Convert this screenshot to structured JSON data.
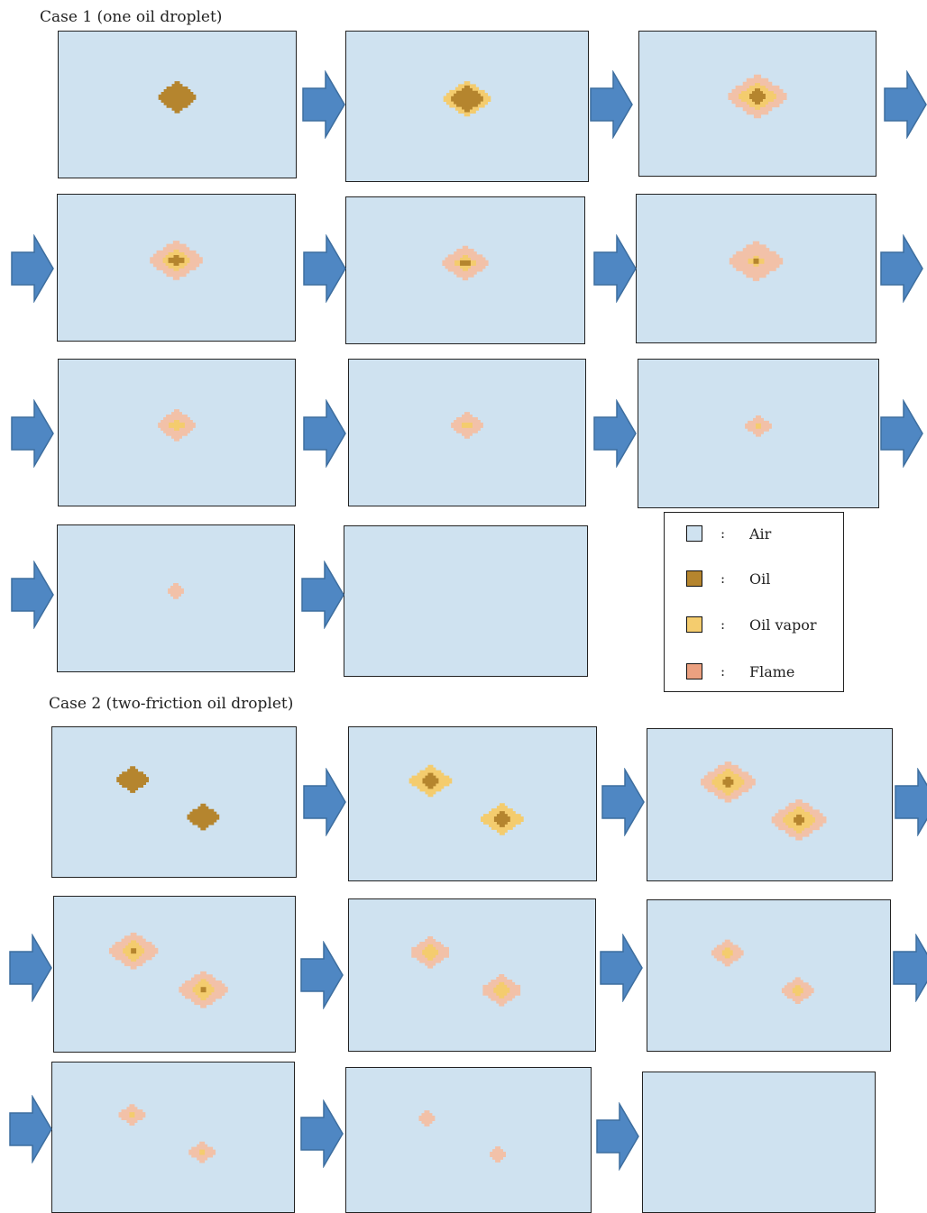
{
  "titles": {
    "case1": "Case 1 (one oil droplet)",
    "case2": "Case 2 (two-friction oil droplet)"
  },
  "colors": {
    "air": "#cfe2f0",
    "oil": "#b5852e",
    "oil_vapor": "#f4cc6e",
    "flame": "#f2c1a8",
    "arrow_fill": "#4f87c3",
    "arrow_stroke": "#3d6e9f"
  },
  "legend": [
    {
      "key": "air",
      "label": "Air",
      "color": "#cfe2f0"
    },
    {
      "key": "oil",
      "label": "Oil",
      "color": "#b5852e"
    },
    {
      "key": "oil_vapor",
      "label": "Oil vapor",
      "color": "#f4cc6e"
    },
    {
      "key": "flame",
      "label": "Flame",
      "color": "#eba080"
    }
  ],
  "legend_separator": ":",
  "case1_frames": [
    {
      "droplets": [
        {
          "flame": 0,
          "vapor": 0,
          "oil": 0.3
        }
      ]
    },
    {
      "droplets": [
        {
          "flame": 0,
          "vapor": 0.35,
          "oil": 0.25
        }
      ]
    },
    {
      "droplets": [
        {
          "flame": 0.45,
          "vapor": 0.28,
          "oil": 0.15
        }
      ]
    },
    {
      "droplets": [
        {
          "flame": 0.4,
          "vapor": 0.22,
          "oil": 0.12
        }
      ]
    },
    {
      "droplets": [
        {
          "flame": 0.35,
          "vapor": 0.16,
          "oil": 0.08
        }
      ]
    },
    {
      "droplets": [
        {
          "flame": 0.4,
          "vapor": 0.12,
          "oil": 0.04
        }
      ]
    },
    {
      "droplets": [
        {
          "flame": 0.3,
          "vapor": 0.12,
          "oil": 0
        }
      ]
    },
    {
      "droplets": [
        {
          "flame": 0.25,
          "vapor": 0.08,
          "oil": 0
        }
      ]
    },
    {
      "droplets": [
        {
          "flame": 0.2,
          "vapor": 0.04,
          "oil": 0
        }
      ]
    },
    {
      "droplets": [
        {
          "flame": 0.15,
          "vapor": 0,
          "oil": 0
        }
      ]
    },
    {
      "droplets": []
    }
  ],
  "case2_frames": [
    {
      "droplets": [
        {
          "flame": 0,
          "vapor": 0,
          "oil": 0.25
        },
        {
          "flame": 0,
          "vapor": 0,
          "oil": 0.25
        }
      ]
    },
    {
      "droplets": [
        {
          "flame": 0,
          "vapor": 0.3,
          "oil": 0.14
        },
        {
          "flame": 0,
          "vapor": 0.3,
          "oil": 0.14
        }
      ]
    },
    {
      "droplets": [
        {
          "flame": 0.4,
          "vapor": 0.25,
          "oil": 0.1
        },
        {
          "flame": 0.4,
          "vapor": 0.25,
          "oil": 0.1
        }
      ]
    },
    {
      "droplets": [
        {
          "flame": 0.35,
          "vapor": 0.18,
          "oil": 0.05
        },
        {
          "flame": 0.35,
          "vapor": 0.18,
          "oil": 0.05
        }
      ]
    },
    {
      "droplets": [
        {
          "flame": 0.3,
          "vapor": 0.14,
          "oil": 0
        },
        {
          "flame": 0.3,
          "vapor": 0.14,
          "oil": 0
        }
      ]
    },
    {
      "droplets": [
        {
          "flame": 0.25,
          "vapor": 0.08,
          "oil": 0
        },
        {
          "flame": 0.25,
          "vapor": 0.08,
          "oil": 0
        }
      ]
    },
    {
      "droplets": [
        {
          "flame": 0.2,
          "vapor": 0.04,
          "oil": 0
        },
        {
          "flame": 0.2,
          "vapor": 0.04,
          "oil": 0
        }
      ]
    },
    {
      "droplets": [
        {
          "flame": 0.15,
          "vapor": 0,
          "oil": 0
        },
        {
          "flame": 0.15,
          "vapor": 0,
          "oil": 0
        }
      ]
    },
    {
      "droplets": []
    }
  ]
}
